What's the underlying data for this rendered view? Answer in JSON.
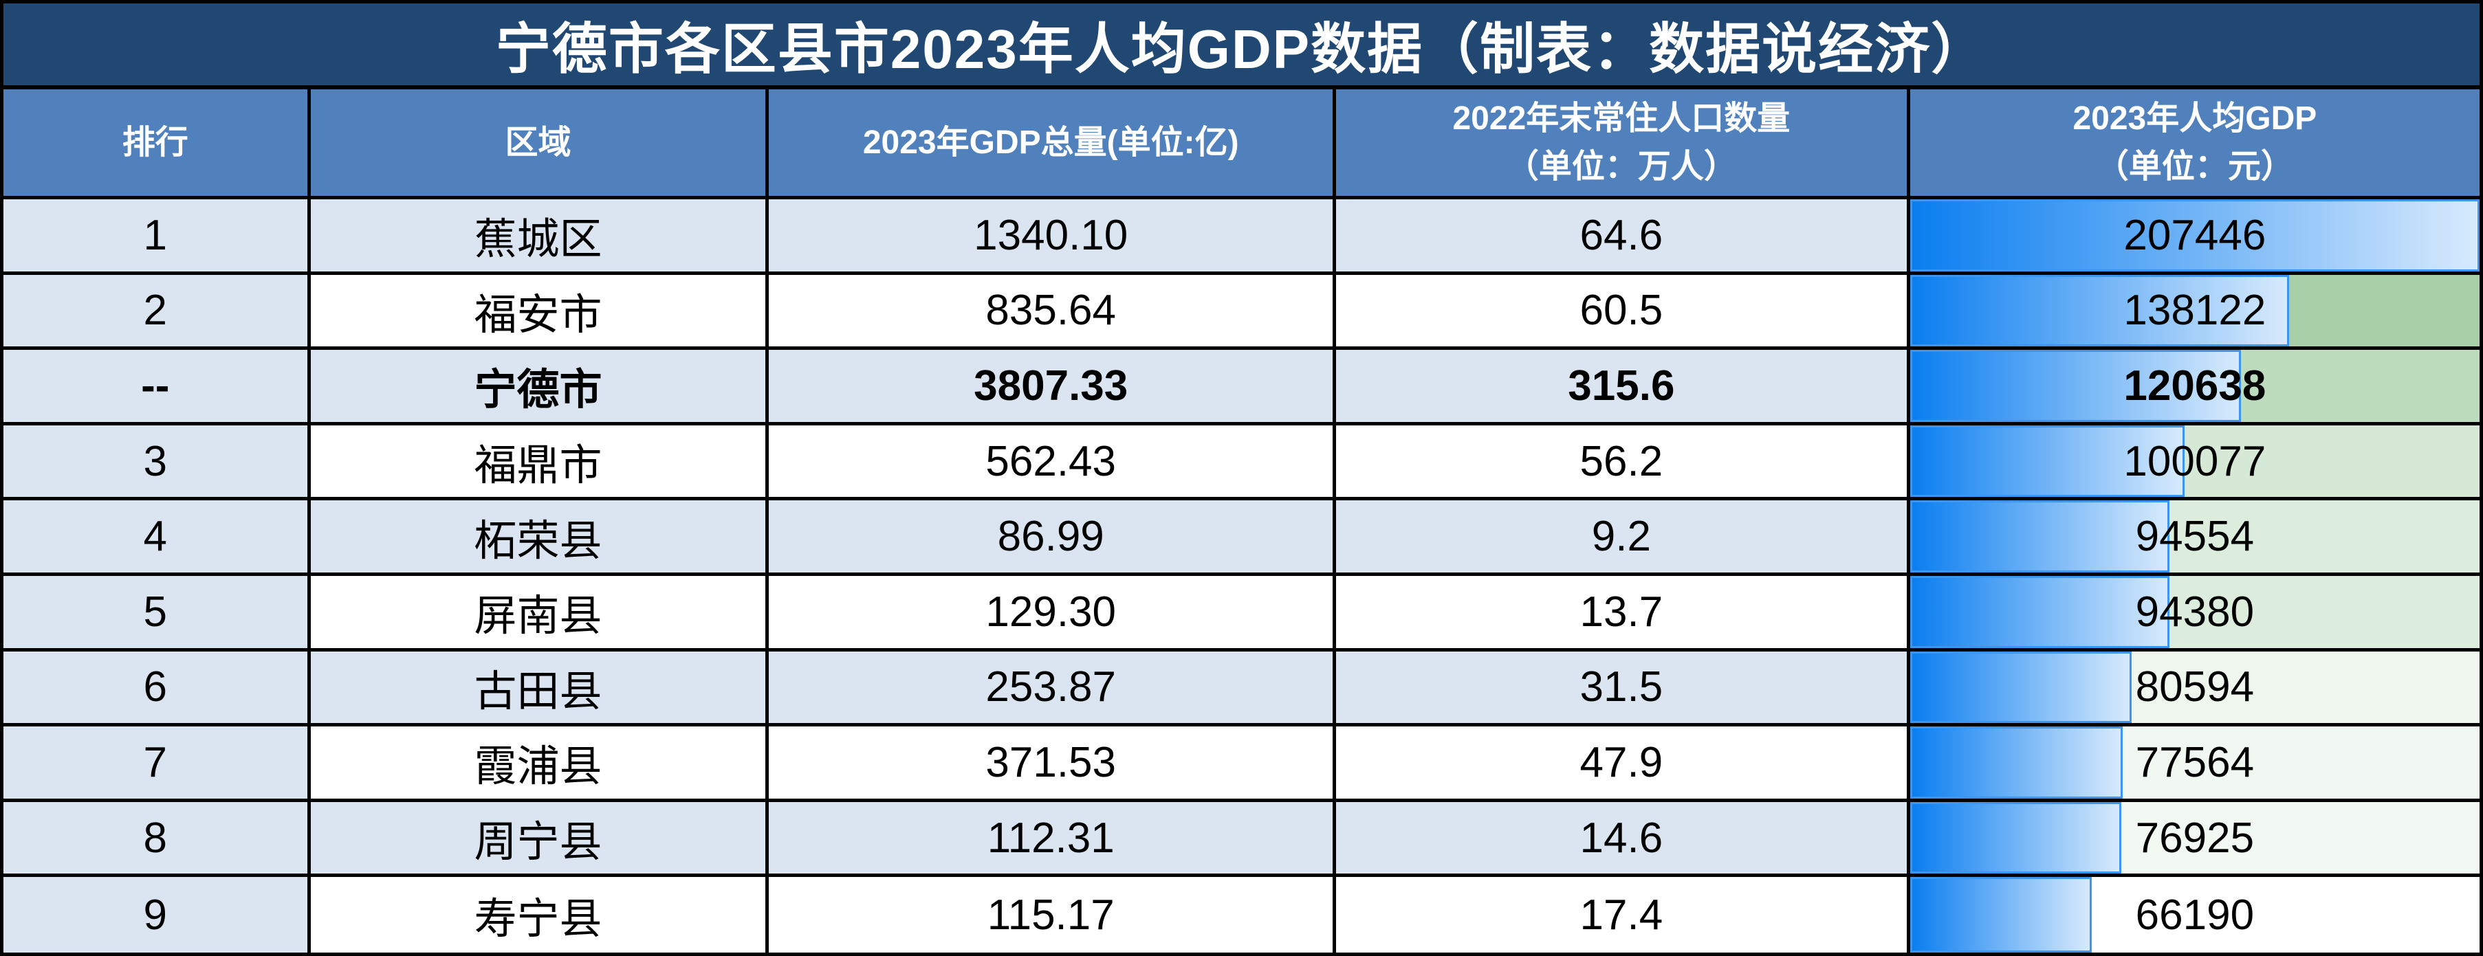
{
  "colors": {
    "title_bg": "#204873",
    "title_text": "#ffffff",
    "header_bg": "#5081bc",
    "header_text": "#ffffff",
    "row_alt_bg": "#dbe5f1",
    "row_bg": "#ffffff",
    "grid": "#000000",
    "body_text": "#000000",
    "bar_start": "#0a7ef0",
    "bar_end": "#d7eafc",
    "bar_border": "#3c96f0"
  },
  "chart_data": {
    "type": "table",
    "title": "宁德市各区县市2023年人均GDP数据（制表：数据说经济）",
    "columns": [
      {
        "line1": "排行",
        "line2": ""
      },
      {
        "line1": "区域",
        "line2": ""
      },
      {
        "line1": "2023年GDP总量(单位:亿)",
        "line2": ""
      },
      {
        "line1": "2022年末常住人口数量",
        "line2": "（单位：万人）"
      },
      {
        "line1": "2023年人均GDP",
        "line2": "（单位：元）"
      }
    ],
    "rows": [
      {
        "rank": "1",
        "region": "蕉城区",
        "gdp": "1340.10",
        "population": "64.6",
        "per_capita": 207446,
        "bold": false
      },
      {
        "rank": "2",
        "region": "福安市",
        "gdp": "835.64",
        "population": "60.5",
        "per_capita": 138122,
        "bold": false
      },
      {
        "rank": "--",
        "region": "宁德市",
        "gdp": "3807.33",
        "population": "315.6",
        "per_capita": 120638,
        "bold": true
      },
      {
        "rank": "3",
        "region": "福鼎市",
        "gdp": "562.43",
        "population": "56.2",
        "per_capita": 100077,
        "bold": false
      },
      {
        "rank": "4",
        "region": "柘荣县",
        "gdp": "86.99",
        "population": "9.2",
        "per_capita": 94554,
        "bold": false
      },
      {
        "rank": "5",
        "region": "屏南县",
        "gdp": "129.30",
        "population": "13.7",
        "per_capita": 94380,
        "bold": false
      },
      {
        "rank": "6",
        "region": "古田县",
        "gdp": "253.87",
        "population": "31.5",
        "per_capita": 80594,
        "bold": false
      },
      {
        "rank": "7",
        "region": "霞浦县",
        "gdp": "371.53",
        "population": "47.9",
        "per_capita": 77564,
        "bold": false
      },
      {
        "rank": "8",
        "region": "周宁县",
        "gdp": "112.31",
        "population": "14.6",
        "per_capita": 76925,
        "bold": false
      },
      {
        "rank": "9",
        "region": "寿宁县",
        "gdp": "115.17",
        "population": "17.4",
        "per_capita": 66190,
        "bold": false
      }
    ],
    "databar": {
      "applies_to": "per_capita",
      "min": 0,
      "max": 207446
    },
    "color_scale": {
      "applies_to": "per_capita",
      "min": 66190,
      "max": 207446,
      "min_color": "#ffffff",
      "max_color": "#54a354"
    },
    "layout_hints": {
      "rank_column_fill": "always light blue",
      "body_rows_alternate": "lightblue/white starting lightblue",
      "grid": "thick black lines"
    }
  }
}
